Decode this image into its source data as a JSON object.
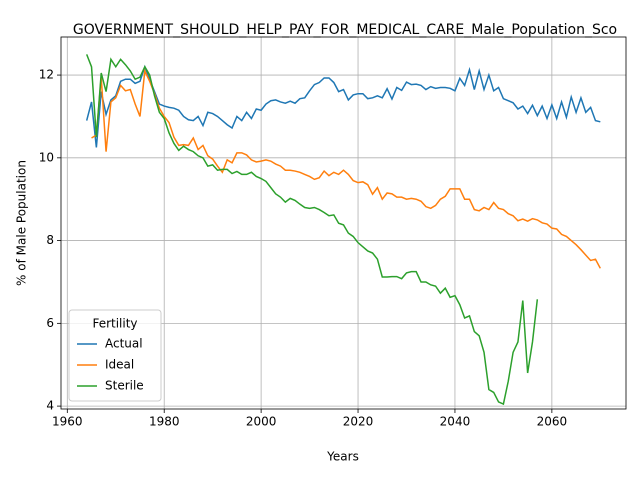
{
  "chart_data": {
    "type": "line",
    "title": "GOVERNMENT_SHOULD_HELP_PAY_FOR_MEDICAL_CARE_Male_Population_Sco",
    "xlabel": "Years",
    "ylabel": "% of Male Population",
    "x": [
      1964,
      1965,
      1966,
      1967,
      1968,
      1969,
      1970,
      1971,
      1972,
      1973,
      1974,
      1975,
      1976,
      1977,
      1978,
      1979,
      1980,
      1981,
      1982,
      1983,
      1984,
      1985,
      1986,
      1987,
      1988,
      1989,
      1990,
      1991,
      1992,
      1993,
      1994,
      1995,
      1996,
      1997,
      1998,
      1999,
      2000,
      2001,
      2002,
      2003,
      2004,
      2005,
      2006,
      2007,
      2008,
      2009,
      2010,
      2011,
      2012,
      2013,
      2014,
      2015,
      2016,
      2017,
      2018,
      2019,
      2020,
      2021,
      2022,
      2023,
      2024,
      2025,
      2026,
      2027,
      2028,
      2029,
      2030,
      2031,
      2032,
      2033,
      2034,
      2035,
      2036,
      2037,
      2038,
      2039,
      2040,
      2041,
      2042,
      2043,
      2044,
      2045,
      2046,
      2047,
      2048,
      2049,
      2050,
      2051,
      2052,
      2053,
      2054,
      2055,
      2056,
      2057,
      2058,
      2059,
      2060,
      2061,
      2062,
      2063,
      2064,
      2065,
      2066,
      2067,
      2068,
      2069,
      2070
    ],
    "series": [
      {
        "name": "Actual",
        "color": "#1f77b4",
        "values": [
          10.9,
          11.35,
          10.25,
          11.6,
          11.05,
          11.4,
          11.5,
          11.85,
          11.9,
          11.9,
          11.8,
          11.85,
          12.2,
          11.9,
          11.6,
          11.3,
          11.25,
          11.22,
          11.2,
          11.15,
          11.0,
          10.92,
          10.9,
          11.0,
          10.78,
          11.1,
          11.07,
          11.0,
          10.9,
          10.8,
          10.72,
          11.0,
          10.9,
          11.1,
          10.95,
          11.18,
          11.15,
          11.3,
          11.38,
          11.4,
          11.35,
          11.32,
          11.37,
          11.32,
          11.43,
          11.45,
          11.62,
          11.77,
          11.82,
          11.93,
          11.93,
          11.82,
          11.6,
          11.65,
          11.4,
          11.52,
          11.55,
          11.55,
          11.43,
          11.45,
          11.5,
          11.45,
          11.67,
          11.42,
          11.7,
          11.63,
          11.83,
          11.77,
          11.78,
          11.75,
          11.65,
          11.72,
          11.68,
          11.7,
          11.7,
          11.68,
          11.62,
          11.92,
          11.75,
          12.13,
          11.65,
          12.1,
          11.65,
          12.0,
          11.62,
          11.7,
          11.43,
          11.38,
          11.33,
          11.18,
          11.25,
          11.07,
          11.27,
          11.02,
          11.25,
          10.95,
          11.28,
          10.95,
          11.35,
          10.98,
          11.47,
          11.1,
          11.45,
          11.1,
          11.22,
          10.9,
          10.87
        ]
      },
      {
        "name": "Ideal",
        "color": "#ff7f0e",
        "values": [
          null,
          10.48,
          10.55,
          11.95,
          10.15,
          11.35,
          11.45,
          11.75,
          11.62,
          11.65,
          11.3,
          11.0,
          12.1,
          11.85,
          11.55,
          11.2,
          11.0,
          10.85,
          10.5,
          10.3,
          10.32,
          10.3,
          10.48,
          10.2,
          10.3,
          10.05,
          9.97,
          9.8,
          9.65,
          9.95,
          9.88,
          10.12,
          10.12,
          10.07,
          9.95,
          9.9,
          9.92,
          9.95,
          9.92,
          9.85,
          9.8,
          9.7,
          9.7,
          9.68,
          9.65,
          9.6,
          9.55,
          9.48,
          9.52,
          9.68,
          9.57,
          9.65,
          9.6,
          9.7,
          9.6,
          9.45,
          9.4,
          9.42,
          9.35,
          9.12,
          9.28,
          9.0,
          9.15,
          9.13,
          9.05,
          9.05,
          9.0,
          9.02,
          9.0,
          8.95,
          8.82,
          8.78,
          8.85,
          9.0,
          9.07,
          9.25,
          9.25,
          9.25,
          9.0,
          9.0,
          8.75,
          8.72,
          8.8,
          8.75,
          8.92,
          8.78,
          8.75,
          8.65,
          8.6,
          8.48,
          8.52,
          8.47,
          8.53,
          8.5,
          8.43,
          8.4,
          8.3,
          8.28,
          8.15,
          8.1,
          8.0,
          7.9,
          7.78,
          7.65,
          7.52,
          7.55,
          7.33
        ]
      },
      {
        "name": "Sterile",
        "color": "#2ca02c",
        "values": [
          12.5,
          12.2,
          10.5,
          12.05,
          11.6,
          12.38,
          12.2,
          12.38,
          12.25,
          12.1,
          11.9,
          11.95,
          12.2,
          12.0,
          11.5,
          11.1,
          10.95,
          10.6,
          10.35,
          10.18,
          10.28,
          10.2,
          10.15,
          10.05,
          10.0,
          9.8,
          9.83,
          9.7,
          9.72,
          9.72,
          9.62,
          9.67,
          9.6,
          9.6,
          9.65,
          9.55,
          9.5,
          9.43,
          9.28,
          9.13,
          9.05,
          8.93,
          9.02,
          8.97,
          8.88,
          8.8,
          8.78,
          8.8,
          8.75,
          8.68,
          8.6,
          8.62,
          8.42,
          8.38,
          8.18,
          8.1,
          7.95,
          7.85,
          7.75,
          7.7,
          7.55,
          7.12,
          7.12,
          7.13,
          7.13,
          7.08,
          7.22,
          7.25,
          7.25,
          7.0,
          7.0,
          6.93,
          6.9,
          6.73,
          6.85,
          6.63,
          6.67,
          6.45,
          6.13,
          6.18,
          5.8,
          5.7,
          5.3,
          4.4,
          4.33,
          4.1,
          4.05,
          4.6,
          5.3,
          5.55,
          6.55,
          4.8,
          5.55,
          6.58,
          null,
          null,
          null,
          null,
          null,
          null,
          null,
          null,
          null,
          null,
          null,
          null,
          null
        ]
      }
    ],
    "xlim": [
      1958.7,
      2075.3
    ],
    "xticks": [
      1960,
      1980,
      2000,
      2020,
      2040,
      2060
    ],
    "ylim": [
      3.93,
      12.92
    ],
    "yticks": [
      4,
      6,
      8,
      10,
      12
    ],
    "grid": true,
    "legend": {
      "title": "Fertility",
      "loc": "lower left"
    }
  }
}
